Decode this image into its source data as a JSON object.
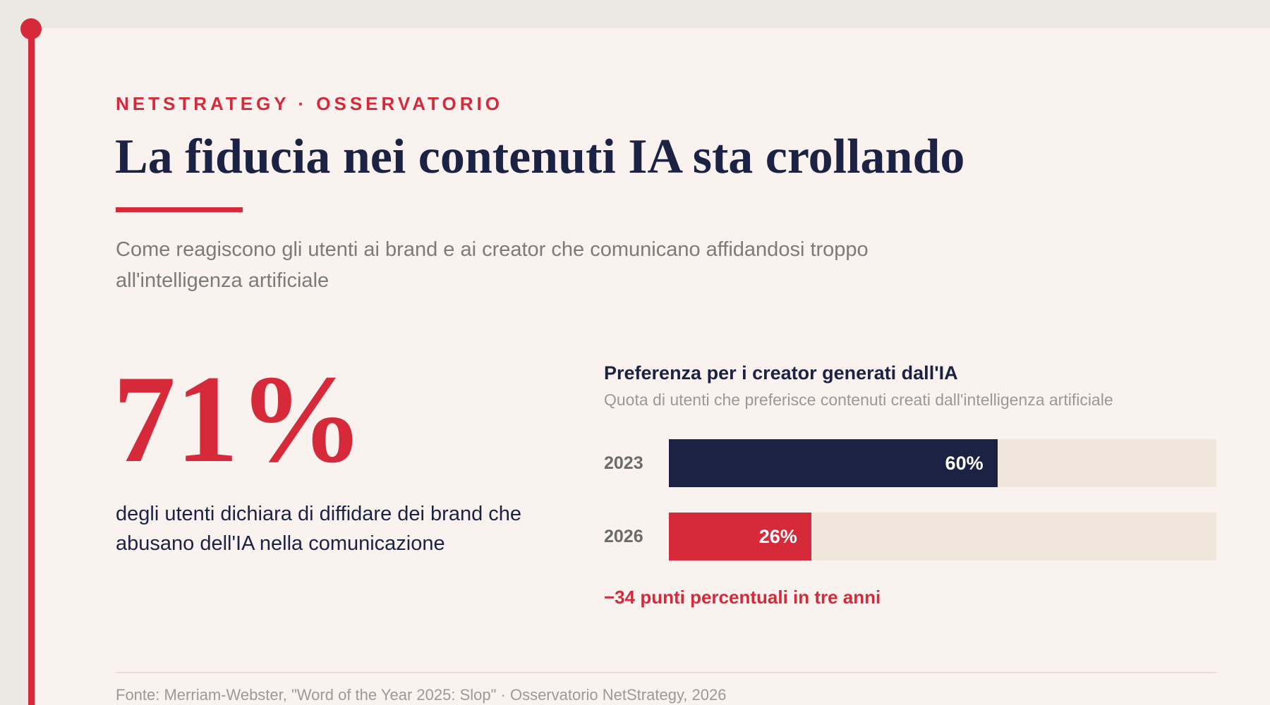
{
  "header": {
    "kicker": "NETSTRATEGY · OSSERVATORIO",
    "title": "La fiducia nei contenuti IA sta crollando",
    "subtitle": "Come reagiscono gli utenti ai brand e ai creator che comunicano affidandosi troppo all'intelligenza artificiale"
  },
  "stat": {
    "value": "71%",
    "description": "degli utenti dichiara di diffidare dei brand che abusano dell'IA nella comunicazione"
  },
  "chart_data": {
    "type": "bar",
    "orientation": "horizontal",
    "title": "Preferenza per i creator generati dall'IA",
    "subtitle": "Quota di utenti che preferisce contenuti creati dall'intelligenza artificiale",
    "categories": [
      "2023",
      "2026"
    ],
    "values": [
      60,
      26
    ],
    "value_labels": [
      "60%",
      "26%"
    ],
    "colors": [
      "#1c2243",
      "#d62a3a"
    ],
    "xlim": [
      0,
      100
    ],
    "grid": false,
    "annotation": "−34 punti percentuali in tre anni"
  },
  "footer": {
    "source": "Fonte: Merriam-Webster, \"Word of the Year 2025: Slop\" · Osservatorio NetStrategy, 2026"
  },
  "colors": {
    "accent": "#d62a3a",
    "navy": "#1c2243",
    "track": "#f0e6db",
    "background": "#f9f2ee"
  }
}
